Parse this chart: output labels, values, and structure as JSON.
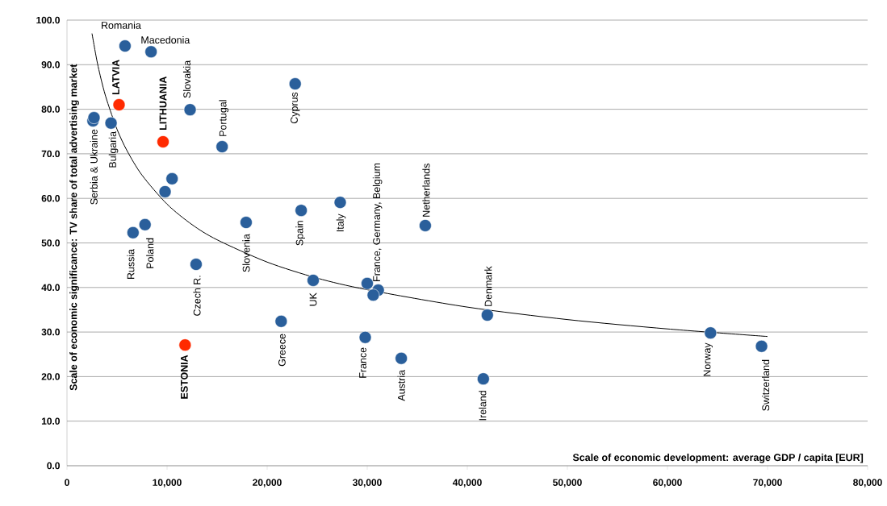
{
  "chart_data": {
    "type": "scatter",
    "xlabel": "Scale of economic development: average GDP / capita [EUR]",
    "ylabel": "Scale of economic significance: TV share of total advertising market",
    "xlim": [
      0,
      80000
    ],
    "ylim": [
      0,
      100
    ],
    "xticks": [
      {
        "value": 0,
        "label": "0"
      },
      {
        "value": 10000,
        "label": "10,000"
      },
      {
        "value": 20000,
        "label": "20,000"
      },
      {
        "value": 30000,
        "label": "30,000"
      },
      {
        "value": 40000,
        "label": "40,000"
      },
      {
        "value": 50000,
        "label": "50,000"
      },
      {
        "value": 60000,
        "label": "60,000"
      },
      {
        "value": 70000,
        "label": "70,000"
      },
      {
        "value": 80000,
        "label": "80,000"
      }
    ],
    "yticks": [
      {
        "value": 0,
        "label": "0.0"
      },
      {
        "value": 10,
        "label": "10.0"
      },
      {
        "value": 20,
        "label": "20.0"
      },
      {
        "value": 30,
        "label": "30.0"
      },
      {
        "value": 40,
        "label": "40.0"
      },
      {
        "value": 50,
        "label": "50.0"
      },
      {
        "value": 60,
        "label": "60.0"
      },
      {
        "value": 70,
        "label": "70.0"
      },
      {
        "value": 80,
        "label": "80.0"
      },
      {
        "value": 90,
        "label": "90.0"
      },
      {
        "value": 100,
        "label": "100.0"
      }
    ],
    "grid": "y",
    "series": [
      {
        "marker": "circle",
        "x": [
          5800,
          8400,
          5200,
          12300,
          9600,
          15500,
          22800,
          2600,
          2700,
          4400,
          10500,
          9800,
          27300,
          23400,
          17900,
          35800,
          7800,
          6600,
          12900,
          24600,
          30000,
          31100,
          30600,
          42000,
          21400,
          29800,
          11800,
          33400,
          41600,
          64300,
          69400
        ],
        "values": [
          94.2,
          92.9,
          81.0,
          79.9,
          72.7,
          71.6,
          85.7,
          77.4,
          78.1,
          76.9,
          64.4,
          61.5,
          59.1,
          57.3,
          54.6,
          53.9,
          54.1,
          52.3,
          45.2,
          41.6,
          40.9,
          39.4,
          38.3,
          33.8,
          32.4,
          28.8,
          27.1,
          24.1,
          19.5,
          29.8,
          26.8
        ],
        "colors": [
          "#2a5f9b",
          "#2a5f9b",
          "#ff2a00",
          "#2a5f9b",
          "#ff2a00",
          "#2a5f9b",
          "#2a5f9b",
          "#2a5f9b",
          "#2a5f9b",
          "#2a5f9b",
          "#2a5f9b",
          "#2a5f9b",
          "#2a5f9b",
          "#2a5f9b",
          "#2a5f9b",
          "#2a5f9b",
          "#2a5f9b",
          "#2a5f9b",
          "#2a5f9b",
          "#2a5f9b",
          "#2a5f9b",
          "#2a5f9b",
          "#2a5f9b",
          "#2a5f9b",
          "#2a5f9b",
          "#2a5f9b",
          "#ff2a00",
          "#2a5f9b",
          "#2a5f9b",
          "#2a5f9b",
          "#2a5f9b"
        ]
      },
      {
        "type": "line",
        "marker": "none",
        "color": "#000000",
        "x": [
          2500,
          3000,
          3500,
          4000,
          5000,
          6000,
          7500,
          10000,
          12500,
          15000,
          20000,
          25000,
          30000,
          40000,
          50000,
          60000,
          70000
        ],
        "values": [
          97,
          90.8,
          85.9,
          81.9,
          75.5,
          70.7,
          65.2,
          58.7,
          54.1,
          50.7,
          45.7,
          42.1,
          39.5,
          35.6,
          32.8,
          30.7,
          29.0
        ]
      }
    ],
    "annotations": [
      {
        "text": "Romania",
        "x": 5800,
        "y": 94.2
      },
      {
        "text": "Macedonia",
        "x": 8400,
        "y": 92.9
      },
      {
        "text": "LATVIA",
        "x": 5200,
        "y": 81.0
      },
      {
        "text": "Slovakia",
        "x": 12300,
        "y": 79.9
      },
      {
        "text": "LITHUANIA",
        "x": 9600,
        "y": 72.7
      },
      {
        "text": "Portugal",
        "x": 15500,
        "y": 71.6
      },
      {
        "text": "Cyprus",
        "x": 22800,
        "y": 85.7
      },
      {
        "text": "Serbia & Ukraine",
        "x": 2600,
        "y": 77.4
      },
      {
        "text": "Bulgaria",
        "x": 4400,
        "y": 76.9
      },
      {
        "text": "Italy",
        "x": 27300,
        "y": 59.1
      },
      {
        "text": "Spain",
        "x": 23400,
        "y": 57.3
      },
      {
        "text": "Slovenia",
        "x": 17900,
        "y": 54.6
      },
      {
        "text": "Netherlands",
        "x": 35800,
        "y": 53.9
      },
      {
        "text": "Poland",
        "x": 7800,
        "y": 54.1
      },
      {
        "text": "Russia",
        "x": 6600,
        "y": 52.3
      },
      {
        "text": "Czech R.",
        "x": 12900,
        "y": 45.2
      },
      {
        "text": "UK",
        "x": 24600,
        "y": 41.6
      },
      {
        "text": "France, Germany, Belgium",
        "x": 31100,
        "y": 39.4
      },
      {
        "text": "Denmark",
        "x": 42000,
        "y": 33.8
      },
      {
        "text": "Greece",
        "x": 21400,
        "y": 32.4
      },
      {
        "text": "France",
        "x": 29800,
        "y": 28.8
      },
      {
        "text": "ESTONIA",
        "x": 11800,
        "y": 27.1
      },
      {
        "text": "Austria",
        "x": 33400,
        "y": 24.1
      },
      {
        "text": "Ireland",
        "x": 41600,
        "y": 19.5
      },
      {
        "text": "Norway",
        "x": 64300,
        "y": 29.8
      },
      {
        "text": "Switzerland",
        "x": 69400,
        "y": 26.8
      }
    ]
  }
}
